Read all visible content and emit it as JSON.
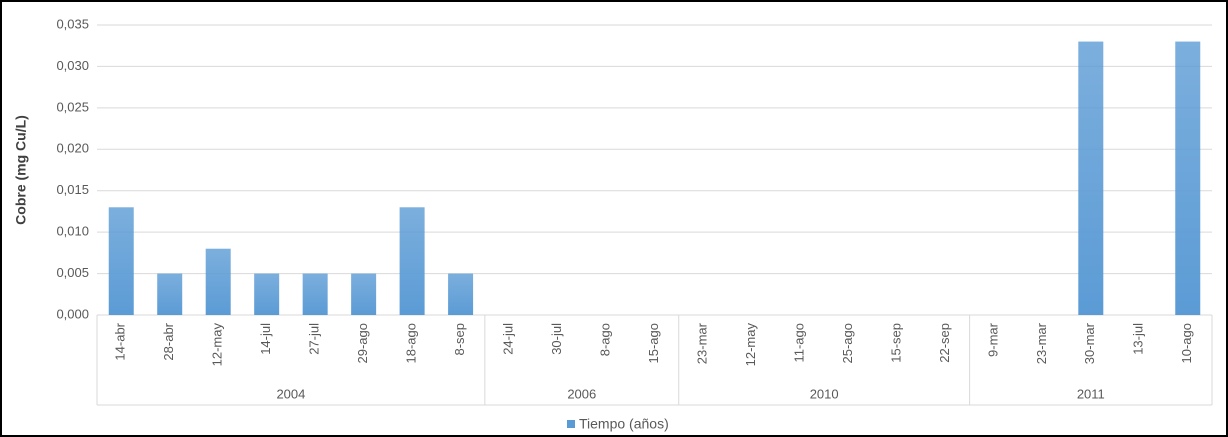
{
  "chart_data": {
    "type": "bar",
    "y_label": "Cobre (mg Cu/L)",
    "groups": [
      {
        "name": "2004",
        "categories": [
          "14-abr",
          "28-abr",
          "12-may",
          "14-jul",
          "27-jul",
          "29-ago",
          "18-ago",
          "8-sep"
        ]
      },
      {
        "name": "2006",
        "categories": [
          "24-jul",
          "30-jul",
          "8-ago",
          "15-ago"
        ]
      },
      {
        "name": "2010",
        "categories": [
          "23-mar",
          "12-may",
          "11-ago",
          "25-ago",
          "15-sep",
          "22-sep"
        ]
      },
      {
        "name": "2011",
        "categories": [
          "9-mar",
          "23-mar",
          "30-mar",
          "13-jul",
          "10-ago"
        ]
      }
    ],
    "series": [
      {
        "name": "Tiempo (años)",
        "color": "#5b9bd5",
        "values": [
          0.013,
          0.005,
          0.008,
          0.005,
          0.005,
          0.005,
          0.013,
          0.005,
          0,
          0,
          0,
          0,
          0,
          0,
          0,
          0,
          0,
          0,
          0,
          0,
          0.033,
          0,
          0.033
        ]
      }
    ],
    "ylim": [
      0,
      0.035
    ],
    "yticks": [
      {
        "value": 0,
        "label": "0,000"
      },
      {
        "value": 0.005,
        "label": "0,005"
      },
      {
        "value": 0.01,
        "label": "0,010"
      },
      {
        "value": 0.015,
        "label": "0,015"
      },
      {
        "value": 0.02,
        "label": "0,020"
      },
      {
        "value": 0.025,
        "label": "0,025"
      },
      {
        "value": 0.03,
        "label": "0,030"
      },
      {
        "value": 0.035,
        "label": "0,035"
      }
    ],
    "grid": true,
    "legend": "bottom"
  }
}
